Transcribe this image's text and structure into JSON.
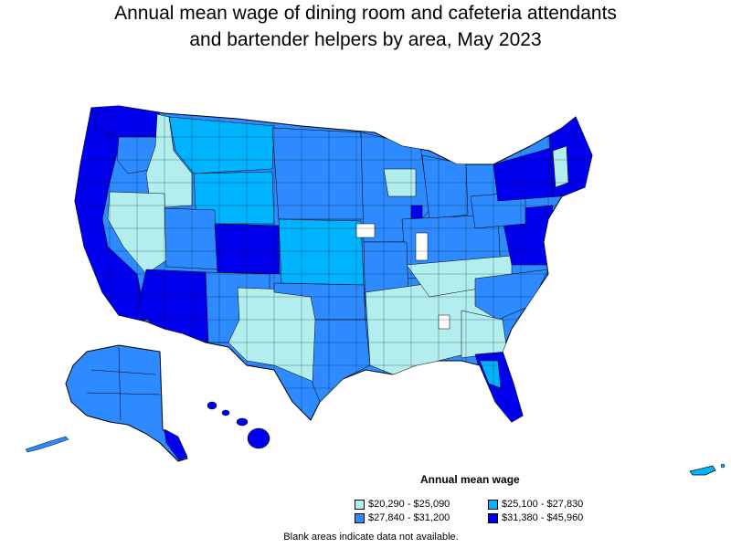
{
  "title": {
    "line1": "Annual mean wage of dining room and cafeteria attendants",
    "line2": "and bartender helpers by area, May 2023"
  },
  "legend": {
    "title": "Annual mean wage",
    "items": [
      {
        "label": "$20,290 - $25,090",
        "color": "#b2eeee"
      },
      {
        "label": "$25,100 - $27,830",
        "color": "#00b3ff"
      },
      {
        "label": "$27,840 - $31,200",
        "color": "#2e8aff"
      },
      {
        "label": "$31,380 - $45,960",
        "color": "#0000ee"
      }
    ]
  },
  "footnote": "Blank areas indicate data not available."
}
